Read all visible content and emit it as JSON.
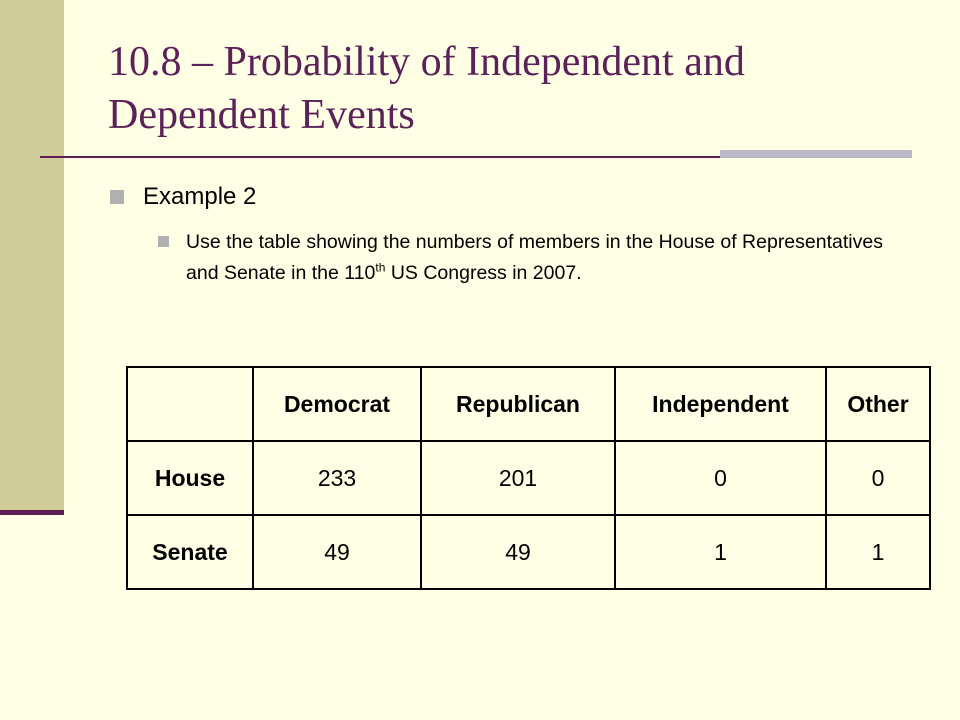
{
  "slide": {
    "title": "10.8 – Probability of Independent and Dependent Events",
    "bullet": "Example 2",
    "sub_bullet_before": "Use the table showing the numbers of members in the House of Representatives and Senate in the 110",
    "sub_bullet_sup": "th",
    "sub_bullet_after": " US Congress in 2007."
  },
  "table": {
    "corner": "",
    "columns": [
      "Democrat",
      "Republican",
      "Independent",
      "Other"
    ],
    "rows": [
      {
        "label": "House",
        "values": [
          "233",
          "201",
          "0",
          "0"
        ]
      },
      {
        "label": "Senate",
        "values": [
          "49",
          "49",
          "1",
          "1"
        ]
      }
    ]
  },
  "colors": {
    "background": "#ffffe5",
    "sidebar": "#cfcc99",
    "accent": "#5b1d52",
    "title": "#5c2157"
  }
}
